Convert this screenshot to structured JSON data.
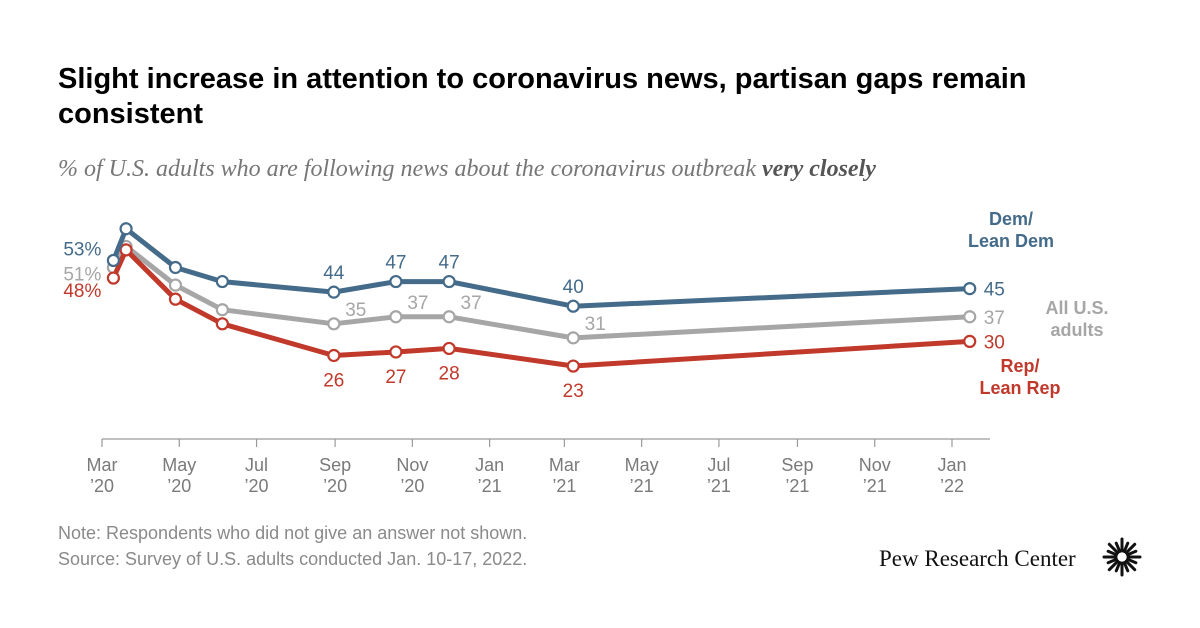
{
  "title": "Slight increase in attention to coronavirus news, partisan gaps remain consistent",
  "subtitle_main": "% of U.S. adults who are following news about the coronavirus outbreak ",
  "subtitle_emph": "very closely",
  "note": "Note: Respondents who did not give an answer not shown.",
  "source": "Source: Survey of U.S. adults conducted Jan. 10-17, 2022.",
  "brand": "Pew Research Center",
  "colors": {
    "dem": "#456b8a",
    "all": "#a6a6a6",
    "rep": "#c0392b",
    "axis": "#9a9a9a",
    "tick_text": "#7a7a7a"
  },
  "chart_data": {
    "type": "line",
    "x_axis": {
      "range": [
        "2020-03-01",
        "2022-01-31"
      ],
      "ticks": [
        {
          "date": "2020-03-01",
          "label": [
            "Mar",
            "’20"
          ]
        },
        {
          "date": "2020-05-01",
          "label": [
            "May",
            "’20"
          ]
        },
        {
          "date": "2020-07-01",
          "label": [
            "Jul",
            "’20"
          ]
        },
        {
          "date": "2020-09-01",
          "label": [
            "Sep",
            "’20"
          ]
        },
        {
          "date": "2020-11-01",
          "label": [
            "Nov",
            "’20"
          ]
        },
        {
          "date": "2021-01-01",
          "label": [
            "Jan",
            "’21"
          ]
        },
        {
          "date": "2021-03-01",
          "label": [
            "Mar",
            "’21"
          ]
        },
        {
          "date": "2021-05-01",
          "label": [
            "May",
            "’21"
          ]
        },
        {
          "date": "2021-07-01",
          "label": [
            "Jul",
            "’21"
          ]
        },
        {
          "date": "2021-09-01",
          "label": [
            "Sep",
            "’21"
          ]
        },
        {
          "date": "2021-11-01",
          "label": [
            "Nov",
            "’21"
          ]
        },
        {
          "date": "2022-01-01",
          "label": [
            "Jan",
            "’22"
          ]
        }
      ]
    },
    "y_axis": {
      "range": [
        0,
        75
      ]
    },
    "dates": [
      "2020-03-10",
      "2020-03-20",
      "2020-04-28",
      "2020-06-04",
      "2020-08-31",
      "2020-10-19",
      "2020-11-30",
      "2021-03-08",
      "2022-01-15"
    ],
    "series": [
      {
        "key": "dem",
        "name": "Dem/ Lean Dem",
        "values": [
          53,
          62,
          51,
          47,
          44,
          47,
          47,
          40,
          45
        ],
        "labels": [
          "53%",
          null,
          null,
          null,
          "44",
          "47",
          "47",
          "40",
          "45"
        ]
      },
      {
        "key": "all",
        "name": "All U.S. adults",
        "values": [
          51,
          57,
          46,
          39,
          35,
          37,
          37,
          31,
          37
        ],
        "labels": [
          "51%",
          null,
          null,
          null,
          "35",
          "37",
          "37",
          "31",
          "37"
        ]
      },
      {
        "key": "rep",
        "name": "Rep/ Lean Rep",
        "values": [
          48,
          56,
          42,
          35,
          26,
          27,
          28,
          23,
          30
        ],
        "labels": [
          "48%",
          null,
          null,
          null,
          "26",
          "27",
          "28",
          "23",
          "30"
        ]
      }
    ],
    "legend": {
      "dem": [
        "Dem/",
        "Lean Dem"
      ],
      "all": [
        "All U.S.",
        "adults"
      ],
      "rep": [
        "Rep/",
        "Lean Rep"
      ]
    },
    "grid": false
  }
}
